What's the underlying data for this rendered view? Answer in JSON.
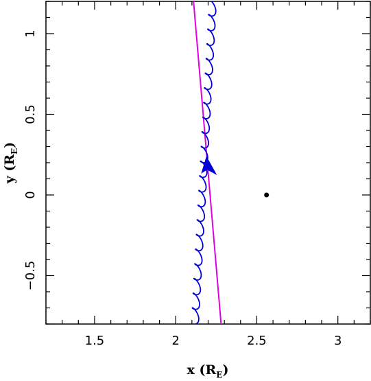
{
  "chart_data": {
    "type": "line",
    "xlim": [
      1.2,
      3.2
    ],
    "ylim": [
      -0.8,
      1.2
    ],
    "x_ticks": [
      1.5,
      2,
      2.5,
      3
    ],
    "x_tick_labels": [
      "1.5",
      "2",
      "2.5",
      "3"
    ],
    "y_ticks": [
      -0.5,
      0,
      0.5,
      1
    ],
    "y_tick_labels": [
      "−0.5",
      "0",
      "0.5",
      "1"
    ],
    "xlabel_main": "x (R",
    "xlabel_sub": "E",
    "xlabel_close": ")",
    "ylabel_main": "y (R",
    "ylabel_sub": "E",
    "ylabel_close": ")",
    "grid": false,
    "series": [
      {
        "kind": "guiding_center_line",
        "color": "#e000e0",
        "points": [
          [
            2.11,
            1.2
          ],
          [
            2.28,
            -0.8
          ]
        ]
      },
      {
        "kind": "particle_trajectory",
        "color": "#0000d8",
        "x_start": 2.12,
        "y_start": -0.8,
        "x_end": 2.23,
        "y_end": 1.2,
        "loops": 22
      }
    ],
    "arrow": {
      "x": 2.19,
      "y": 0.15,
      "color": "#0000d8"
    },
    "point": {
      "x": 2.56,
      "y": 0.0,
      "color": "#000000"
    }
  }
}
